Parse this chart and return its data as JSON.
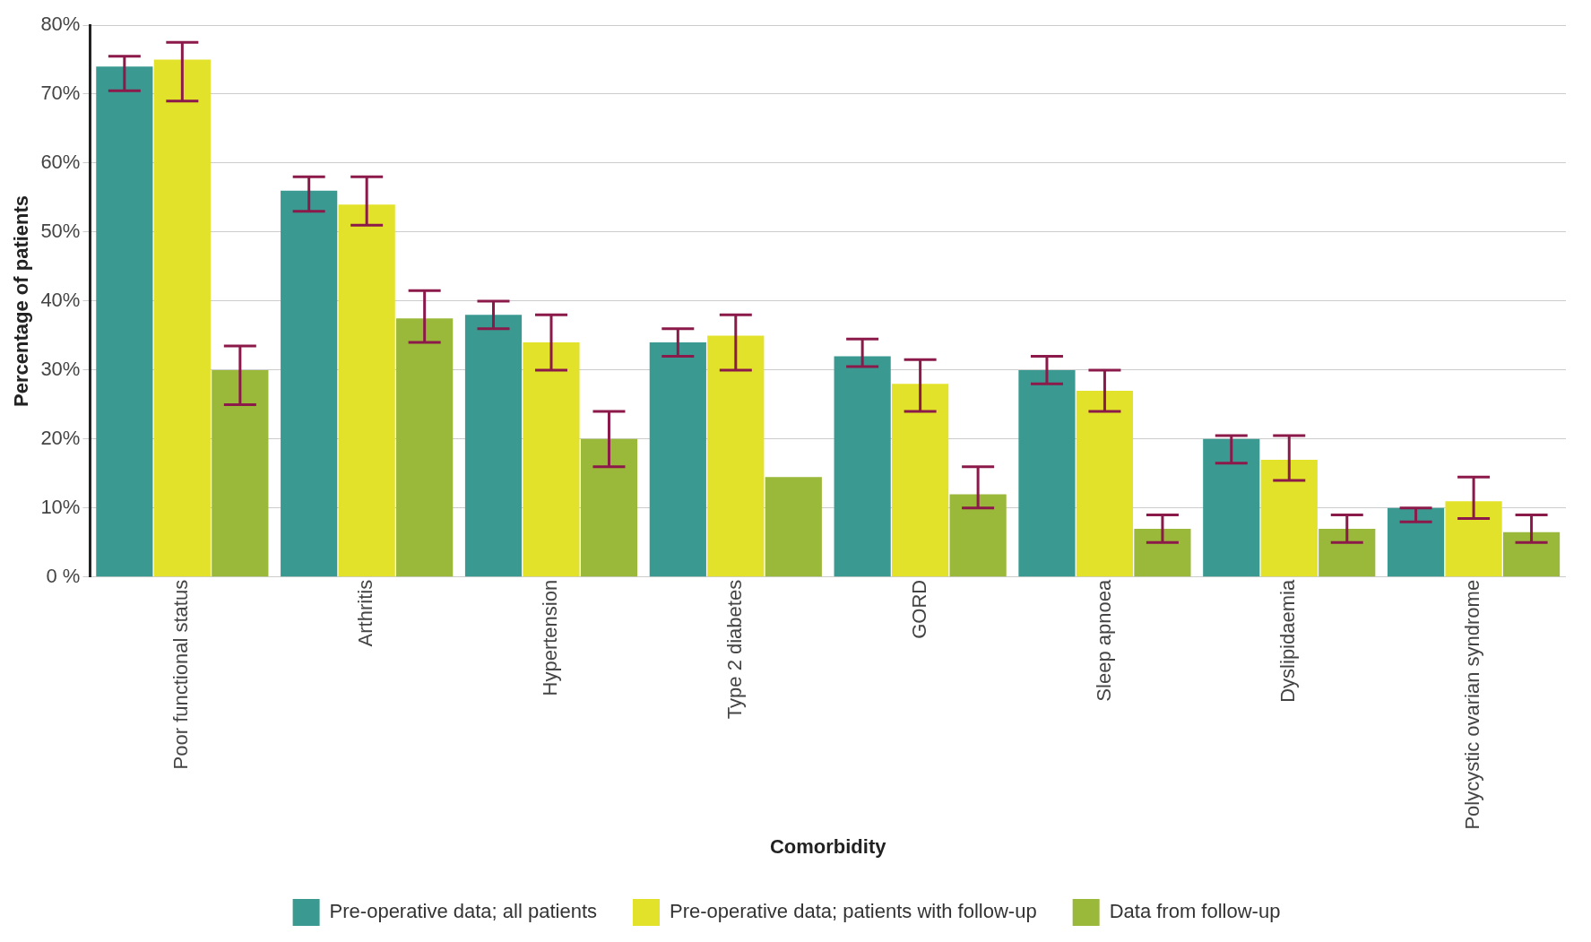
{
  "chart_data": {
    "type": "bar",
    "xlabel": "Comorbidity",
    "ylabel": "Percentage of patients",
    "categories": [
      "Poor functional status",
      "Arthritis",
      "Hypertension",
      "Type 2 diabetes",
      "GORD",
      "Sleep apnoea",
      "Dyslipidaemia",
      "Polycystic ovarian syndrome"
    ],
    "series": [
      {
        "name": "Pre-operative data; all patients",
        "color": "#3a9a92",
        "values": [
          74,
          56,
          38,
          34,
          32,
          30,
          20,
          10
        ],
        "errors": [
          [
            70.5,
            75.5
          ],
          [
            53,
            58
          ],
          [
            36,
            40
          ],
          [
            32,
            36
          ],
          [
            30.5,
            34.5
          ],
          [
            28,
            32
          ],
          [
            16.5,
            20.5
          ],
          [
            8,
            10
          ]
        ]
      },
      {
        "name": "Pre-operative data; patients with follow-up",
        "color": "#e3e22a",
        "values": [
          75,
          54,
          34,
          35,
          28,
          27,
          17,
          11
        ],
        "errors": [
          [
            69,
            77.5
          ],
          [
            51,
            58
          ],
          [
            30,
            38
          ],
          [
            30,
            38
          ],
          [
            24,
            31.5
          ],
          [
            24,
            30
          ],
          [
            14,
            20.5
          ],
          [
            8.5,
            14.5
          ]
        ]
      },
      {
        "name": "Data from follow-up",
        "color": "#9ab83a",
        "values": [
          30,
          37.5,
          20,
          14.5,
          12,
          7,
          7,
          6.5
        ],
        "errors": [
          [
            25,
            33.5
          ],
          [
            34,
            41.5
          ],
          [
            16,
            24
          ],
          null,
          [
            10,
            16
          ],
          [
            5,
            9
          ],
          [
            5,
            9
          ],
          [
            5,
            9
          ]
        ]
      }
    ],
    "ylim": [
      0,
      80
    ],
    "yticks": [
      {
        "value": 0,
        "label": "0 %"
      },
      {
        "value": 10,
        "label": "10%"
      },
      {
        "value": 20,
        "label": "20%"
      },
      {
        "value": 30,
        "label": "30%"
      },
      {
        "value": 40,
        "label": "40%"
      },
      {
        "value": 50,
        "label": "50%"
      },
      {
        "value": 60,
        "label": "60%"
      },
      {
        "value": 70,
        "label": "70%"
      },
      {
        "value": 80,
        "label": "80%"
      }
    ],
    "grid": "y",
    "legend": "bottom"
  }
}
